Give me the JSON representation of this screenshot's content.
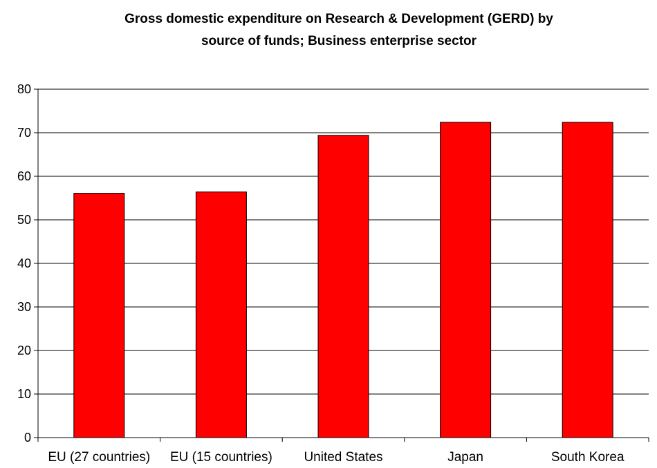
{
  "chart_data": {
    "type": "bar",
    "title_lines": [
      "Gross domestic expenditure on Research & Development (GERD) by",
      "source of funds; Business enterprise sector"
    ],
    "xlabel": "",
    "ylabel": "",
    "categories": [
      "EU (27 countries)",
      "EU (15 countries)",
      "United States",
      "Japan",
      "South Korea"
    ],
    "values": [
      56.1,
      56.4,
      69.4,
      72.4,
      72.4
    ],
    "ylim": [
      0,
      80
    ],
    "yticks": [
      "0",
      "10",
      "20",
      "30",
      "40",
      "50",
      "60",
      "70",
      "80"
    ],
    "grid": true,
    "legend": "none",
    "bar_color": "#ff0000",
    "bar_edge_color": "#000000"
  }
}
